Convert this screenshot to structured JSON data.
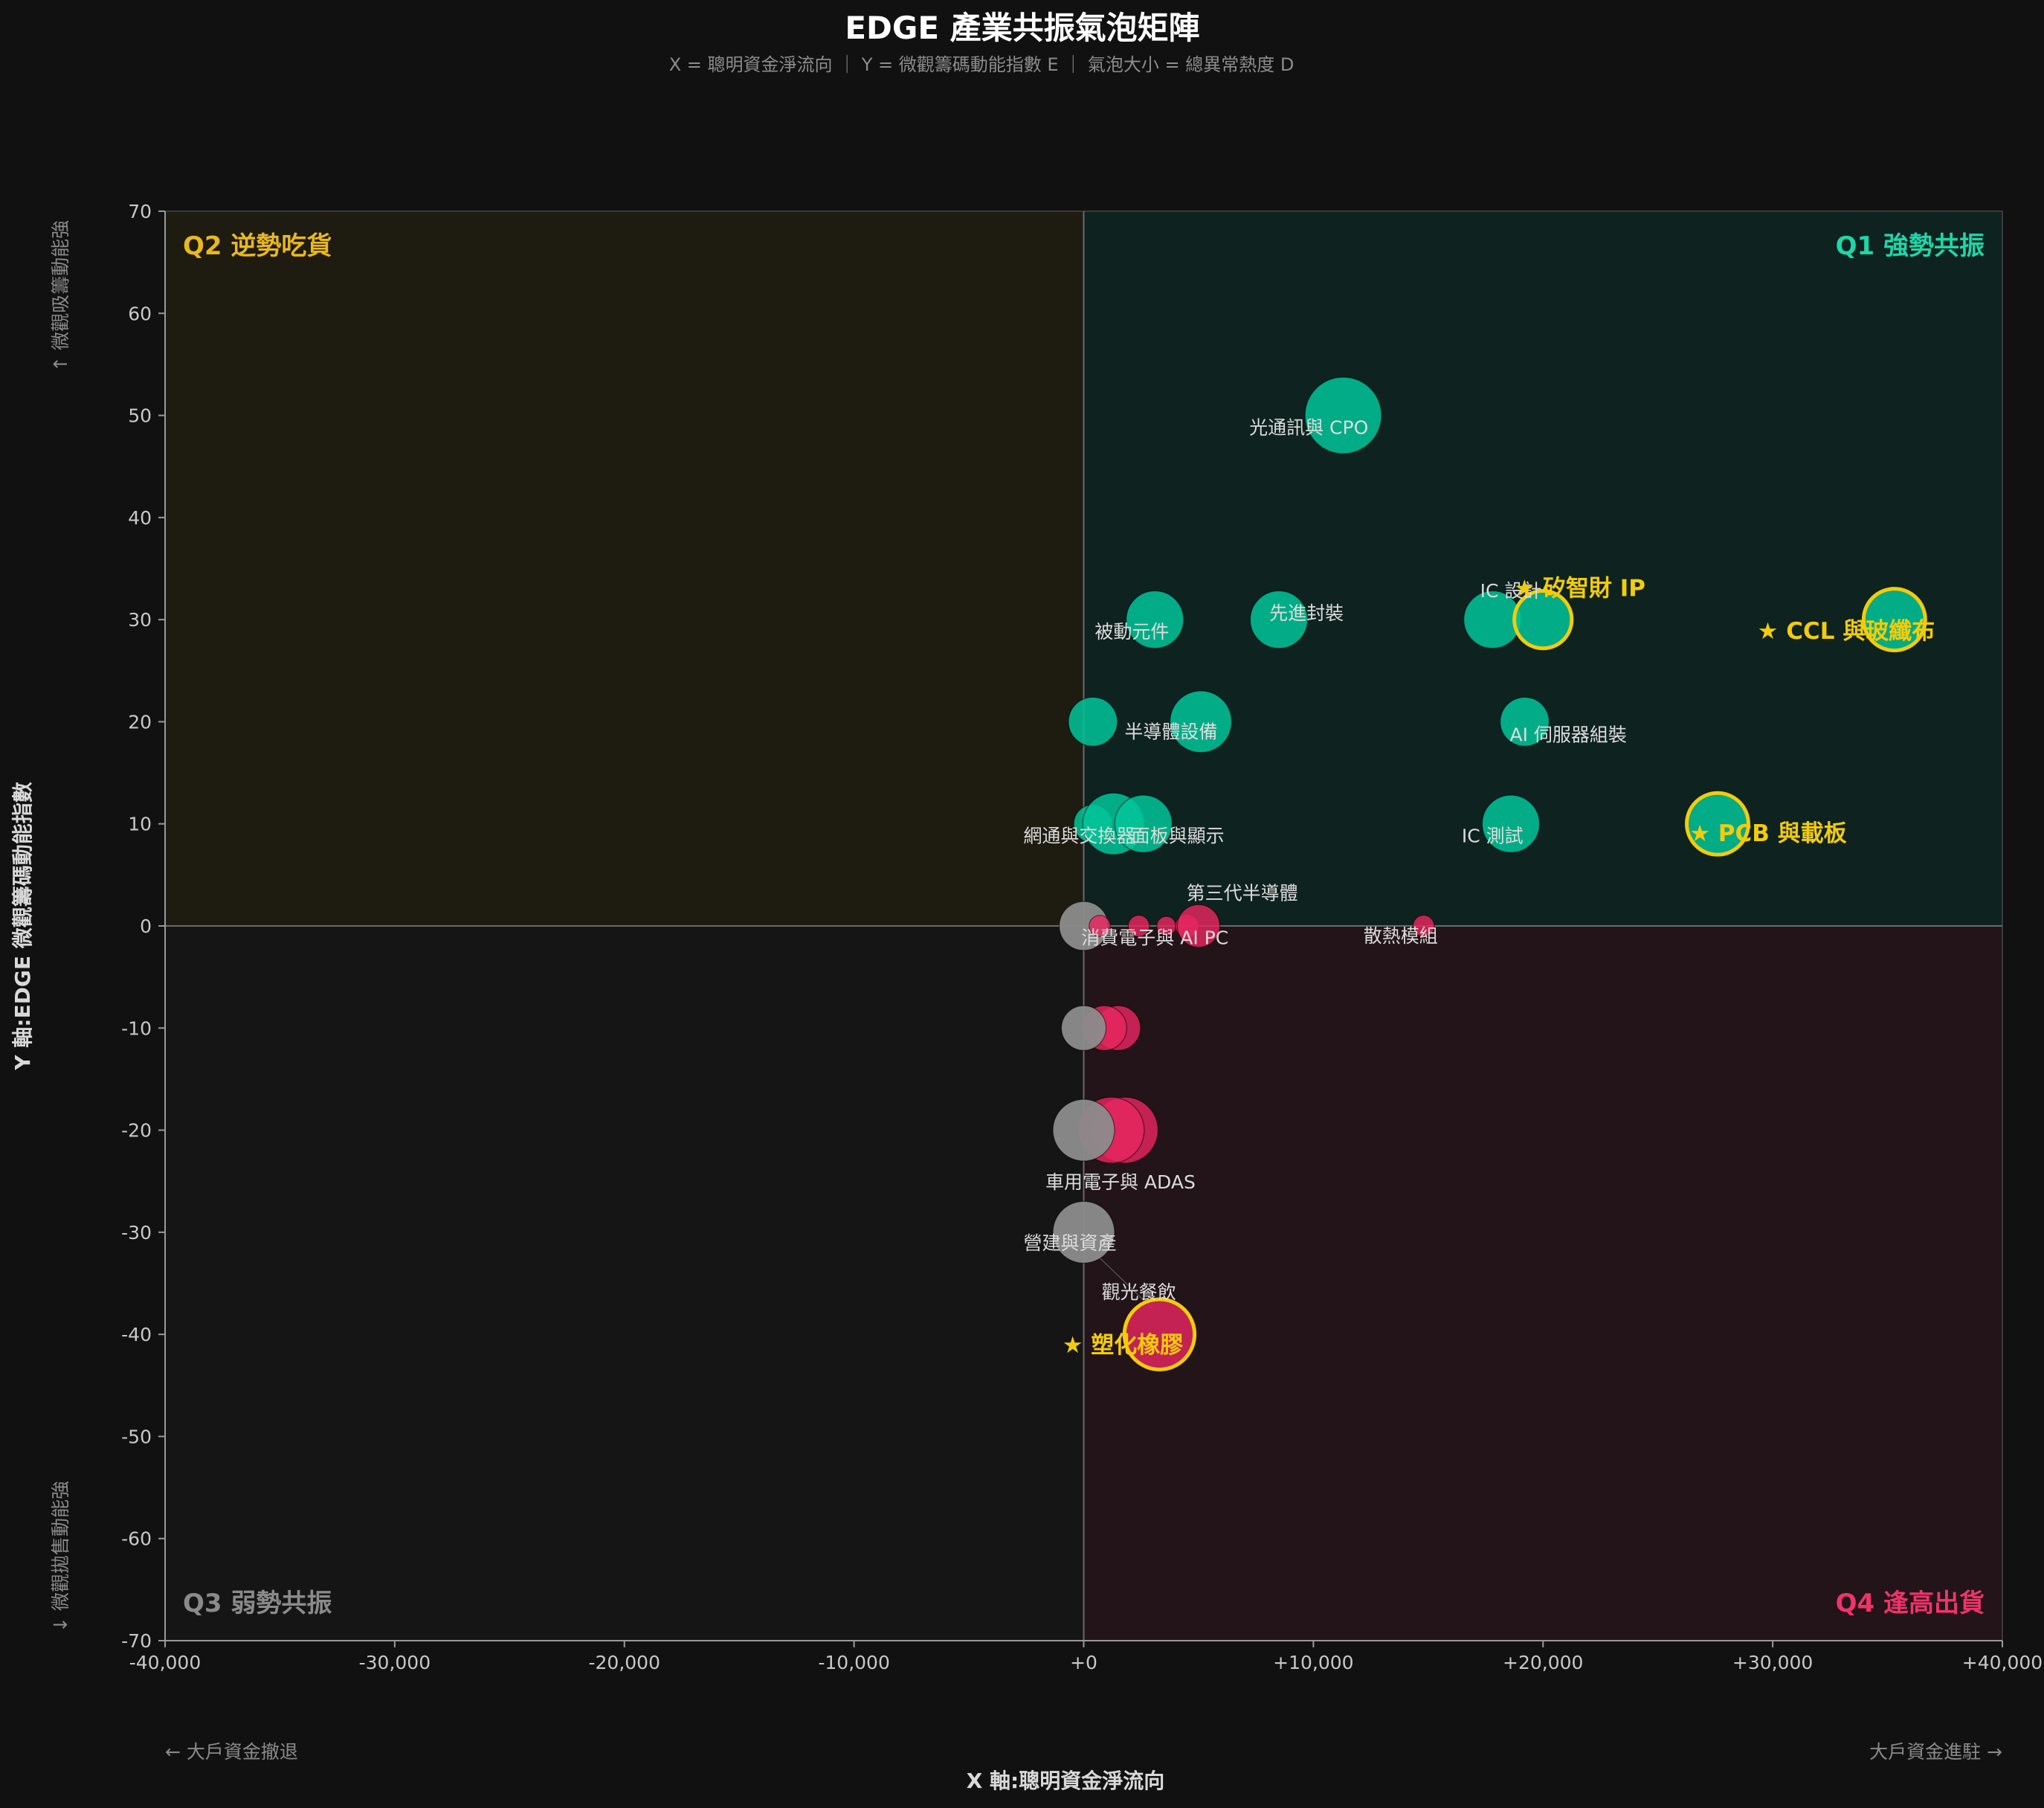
{
  "chart_data": {
    "type": "scatter",
    "title": "EDGE 產業共振氣泡矩陣",
    "subtitle": "X = 聰明資金淨流向 ｜ Y = 微觀籌碼動能指數 E ｜ 氣泡大小 = 總異常熱度 D",
    "xlabel": "X 軸:聰明資金淨流向",
    "ylabel": "Y 軸:EDGE 微觀籌碼動能指數",
    "x_left_note": "← 大戶資金撤退",
    "x_right_note": "大戶資金進駐 →",
    "y_top_note": "↑ 微觀吸籌動能強",
    "y_bottom_note": "↓ 微觀拋售動能強",
    "xlim": [
      -40000,
      40000
    ],
    "ylim": [
      -70,
      70
    ],
    "x_ticks": [
      "-40,000",
      "-30,000",
      "-20,000",
      "-10,000",
      "+0",
      "+10,000",
      "+20,000",
      "+30,000",
      "+40,000"
    ],
    "y_ticks": [
      "70",
      "60",
      "50",
      "40",
      "30",
      "20",
      "10",
      "0",
      "-10",
      "-20",
      "-30",
      "-40",
      "-50",
      "-60",
      "-70"
    ],
    "grid": false,
    "quadrants": {
      "q1": {
        "label": "Q1 強勢共振",
        "color": "#1fd6a8"
      },
      "q2": {
        "label": "Q2 逆勢吃貨",
        "color": "#e8b820"
      },
      "q3": {
        "label": "Q3 弱勢共振",
        "color": "#8a8a8a"
      },
      "q4": {
        "label": "Q4 逢高出貨",
        "color": "#f0336b"
      }
    },
    "colors": {
      "q1_point": "#00c49a",
      "q4_point": "#e8265f",
      "neutral_point": "#8c8c8c",
      "highlight": "#f2cc0c"
    },
    "points": [
      {
        "x": 11300,
        "y": 50,
        "r": 36,
        "cat": "q1"
      },
      {
        "x": 3100,
        "y": 30,
        "r": 27,
        "cat": "q1"
      },
      {
        "x": 8500,
        "y": 30,
        "r": 27,
        "cat": "q1"
      },
      {
        "x": 17800,
        "y": 30,
        "r": 27,
        "cat": "q1"
      },
      {
        "x": 20000,
        "y": 30,
        "r": 27,
        "cat": "q1",
        "highlight": true
      },
      {
        "x": 35300,
        "y": 30,
        "r": 29,
        "cat": "q1",
        "highlight": true
      },
      {
        "x": 400,
        "y": 20,
        "r": 23,
        "cat": "q1"
      },
      {
        "x": 5100,
        "y": 20,
        "r": 29,
        "cat": "q1"
      },
      {
        "x": 19200,
        "y": 20,
        "r": 23,
        "cat": "q1"
      },
      {
        "x": 400,
        "y": 10,
        "r": 18,
        "cat": "q1"
      },
      {
        "x": 1300,
        "y": 10,
        "r": 29,
        "cat": "q1"
      },
      {
        "x": 2600,
        "y": 10,
        "r": 27,
        "cat": "q1"
      },
      {
        "x": 18600,
        "y": 10,
        "r": 27,
        "cat": "q1"
      },
      {
        "x": 27600,
        "y": 10,
        "r": 29,
        "cat": "q1",
        "highlight": true
      },
      {
        "x": 0,
        "y": 0,
        "r": 23,
        "cat": "neutral"
      },
      {
        "x": 700,
        "y": 0,
        "r": 10,
        "cat": "q4"
      },
      {
        "x": 2400,
        "y": 0,
        "r": 10,
        "cat": "q4"
      },
      {
        "x": 3600,
        "y": 0,
        "r": 9,
        "cat": "q4"
      },
      {
        "x": 4500,
        "y": 0,
        "r": 11,
        "cat": "q4"
      },
      {
        "x": 5000,
        "y": 0,
        "r": 20,
        "cat": "q4"
      },
      {
        "x": 14800,
        "y": 0,
        "r": 10,
        "cat": "q4"
      },
      {
        "x": 1500,
        "y": -10,
        "r": 21,
        "cat": "q4"
      },
      {
        "x": 900,
        "y": -10,
        "r": 21,
        "cat": "q4"
      },
      {
        "x": 0,
        "y": -10,
        "r": 21,
        "cat": "neutral"
      },
      {
        "x": 1800,
        "y": -20,
        "r": 31,
        "cat": "q4"
      },
      {
        "x": 1200,
        "y": -20,
        "r": 31,
        "cat": "q4"
      },
      {
        "x": 0,
        "y": -20,
        "r": 29,
        "cat": "neutral"
      },
      {
        "x": 0,
        "y": -30,
        "r": 29,
        "cat": "neutral"
      },
      {
        "x": 3300,
        "y": -40,
        "r": 33,
        "cat": "q4",
        "highlight": true
      }
    ],
    "labels": [
      {
        "text": "光通訊與 CPO",
        "x": 9800,
        "y": 48.2,
        "hl": false
      },
      {
        "text": "被動元件",
        "x": 2100,
        "y": 28.2,
        "hl": false
      },
      {
        "text": "先進封裝",
        "x": 9700,
        "y": 30.0,
        "hl": false
      },
      {
        "text": "IC 設計",
        "x": 18600,
        "y": 32.2,
        "hl": false
      },
      {
        "text": "★ 矽智財 IP",
        "x": 21600,
        "y": 32.3,
        "hl": true
      },
      {
        "text": "★ CCL 與玻纖布",
        "x": 33200,
        "y": 28.1,
        "hl": true
      },
      {
        "text": "半導體設備",
        "x": 3800,
        "y": 18.4,
        "hl": false
      },
      {
        "text": "AI 伺服器組裝",
        "x": 21100,
        "y": 18.1,
        "hl": false
      },
      {
        "text": "網通與交換器",
        "x": -200,
        "y": 8.2,
        "hl": false
      },
      {
        "text": "面板與顯示",
        "x": 4100,
        "y": 8.2,
        "hl": false
      },
      {
        "text": "IC 測試",
        "x": 17800,
        "y": 8.2,
        "hl": false
      },
      {
        "text": "★ PCB 與載板",
        "x": 29800,
        "y": 8.3,
        "hl": true
      },
      {
        "text": "第三代半導體",
        "x": 6900,
        "y": 2.6,
        "hl": false
      },
      {
        "text": "消費電子與 AI PC",
        "x": 3100,
        "y": -1.8,
        "hl": false
      },
      {
        "text": "散熱模組",
        "x": 13800,
        "y": -1.6,
        "hl": false
      },
      {
        "text": "車用電子與 ADAS",
        "x": 1600,
        "y": -25.7,
        "hl": false
      },
      {
        "text": "營建與資產",
        "x": -600,
        "y": -31.7,
        "hl": false
      },
      {
        "text": "觀光餐飲",
        "x": 2400,
        "y": -36.5,
        "hl": false
      },
      {
        "text": "★ 塑化橡膠",
        "x": 1700,
        "y": -41.8,
        "hl": true
      }
    ]
  }
}
